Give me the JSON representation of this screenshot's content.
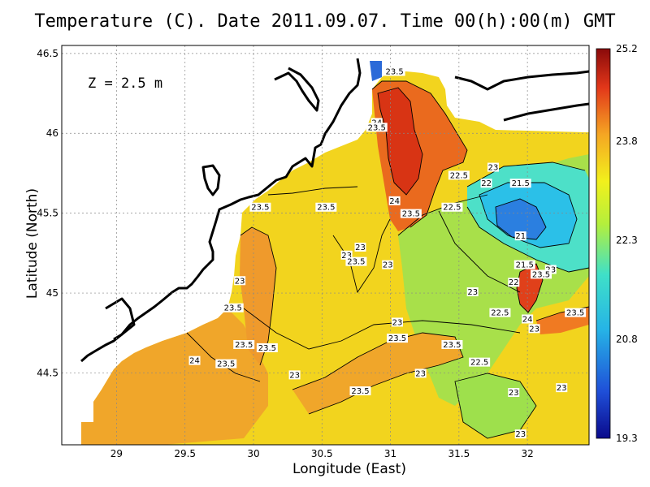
{
  "title": "Temperature (C). Date 2011.09.07. Time 00(h):00(m) GMT",
  "depth_label": "Z = 2.5 m",
  "xlabel": "Longitude (East)",
  "ylabel": "Latitude (North)",
  "x_ticks": [
    "29",
    "29.5",
    "30",
    "30.5",
    "31",
    "31.5",
    "32"
  ],
  "y_ticks": [
    "44.5",
    "45",
    "45.5",
    "46",
    "46.5"
  ],
  "colorbar": {
    "ticks": [
      "25.2",
      "23.8",
      "22.3",
      "20.8",
      "19.3"
    ],
    "min": 19.3,
    "max": 25.2
  },
  "chart_data": {
    "type": "heatmap",
    "title": "Temperature (C). Date 2011.09.07. Time 00(h):00(m) GMT",
    "xlabel": "Longitude (East)",
    "ylabel": "Latitude (North)",
    "xlim": [
      28.6,
      32.45
    ],
    "ylim": [
      44.05,
      46.55
    ],
    "grid": true,
    "colorbar_range": [
      19.3,
      25.2
    ],
    "contour_labels": [
      {
        "lon": 31.03,
        "lat": 46.38,
        "value": "23.5"
      },
      {
        "lon": 30.9,
        "lat": 46.06,
        "value": "24"
      },
      {
        "lon": 30.9,
        "lat": 46.03,
        "value": "23.5"
      },
      {
        "lon": 31.5,
        "lat": 45.73,
        "value": "22.5"
      },
      {
        "lon": 31.75,
        "lat": 45.78,
        "value": "23"
      },
      {
        "lon": 31.7,
        "lat": 45.68,
        "value": "22"
      },
      {
        "lon": 31.95,
        "lat": 45.68,
        "value": "21.5"
      },
      {
        "lon": 30.05,
        "lat": 45.53,
        "value": "23.5"
      },
      {
        "lon": 30.53,
        "lat": 45.53,
        "value": "23.5"
      },
      {
        "lon": 31.03,
        "lat": 45.57,
        "value": "24"
      },
      {
        "lon": 31.15,
        "lat": 45.49,
        "value": "23.5"
      },
      {
        "lon": 31.45,
        "lat": 45.53,
        "value": "22.5"
      },
      {
        "lon": 31.95,
        "lat": 45.35,
        "value": "21"
      },
      {
        "lon": 30.78,
        "lat": 45.28,
        "value": "23"
      },
      {
        "lon": 30.68,
        "lat": 45.23,
        "value": "23"
      },
      {
        "lon": 30.75,
        "lat": 45.19,
        "value": "23.5"
      },
      {
        "lon": 30.98,
        "lat": 45.17,
        "value": "23"
      },
      {
        "lon": 31.98,
        "lat": 45.17,
        "value": "21.5"
      },
      {
        "lon": 32.17,
        "lat": 45.14,
        "value": "23"
      },
      {
        "lon": 32.1,
        "lat": 45.11,
        "value": "23.5"
      },
      {
        "lon": 31.9,
        "lat": 45.06,
        "value": "22"
      },
      {
        "lon": 29.9,
        "lat": 45.07,
        "value": "23"
      },
      {
        "lon": 31.6,
        "lat": 45.0,
        "value": "23"
      },
      {
        "lon": 29.85,
        "lat": 44.9,
        "value": "23.5"
      },
      {
        "lon": 31.8,
        "lat": 44.87,
        "value": "22.5"
      },
      {
        "lon": 32.0,
        "lat": 44.83,
        "value": "24"
      },
      {
        "lon": 32.35,
        "lat": 44.87,
        "value": "23.5"
      },
      {
        "lon": 32.05,
        "lat": 44.77,
        "value": "23"
      },
      {
        "lon": 31.05,
        "lat": 44.81,
        "value": "23"
      },
      {
        "lon": 31.05,
        "lat": 44.71,
        "value": "23.5"
      },
      {
        "lon": 29.93,
        "lat": 44.67,
        "value": "23.5"
      },
      {
        "lon": 30.1,
        "lat": 44.65,
        "value": "23.5"
      },
      {
        "lon": 31.45,
        "lat": 44.67,
        "value": "23.5"
      },
      {
        "lon": 29.57,
        "lat": 44.57,
        "value": "24"
      },
      {
        "lon": 29.8,
        "lat": 44.55,
        "value": "23.5"
      },
      {
        "lon": 31.65,
        "lat": 44.56,
        "value": "22.5"
      },
      {
        "lon": 30.3,
        "lat": 44.48,
        "value": "23"
      },
      {
        "lon": 31.22,
        "lat": 44.49,
        "value": "23"
      },
      {
        "lon": 30.78,
        "lat": 44.38,
        "value": "23.5"
      },
      {
        "lon": 31.9,
        "lat": 44.37,
        "value": "23"
      },
      {
        "lon": 32.25,
        "lat": 44.4,
        "value": "23"
      },
      {
        "lon": 31.95,
        "lat": 44.11,
        "value": "23"
      }
    ]
  }
}
